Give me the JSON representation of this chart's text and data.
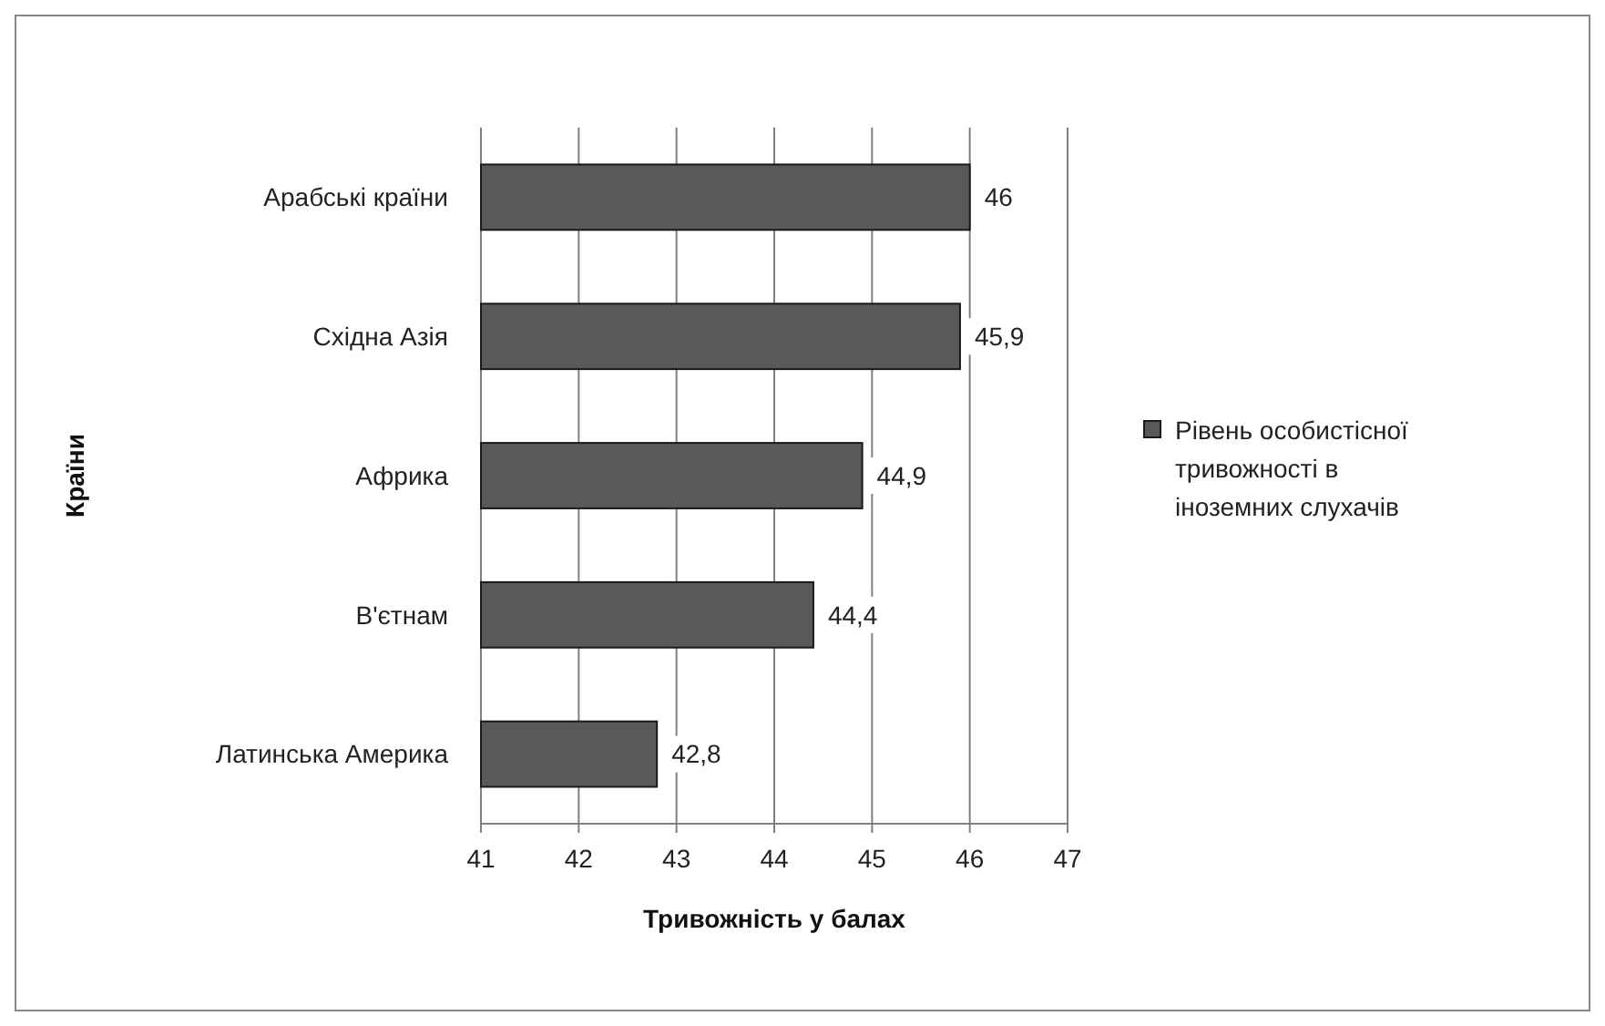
{
  "chart_data": {
    "type": "bar",
    "orientation": "horizontal",
    "xlabel": "Тривожність у балах",
    "ylabel": "Країни",
    "categories": [
      "Арабські країни",
      "Східна Азія",
      "Африка",
      "В'єтнам",
      "Латинська Америка"
    ],
    "series": [
      {
        "name": "Рівень особистісної тривожності в іноземних слухачів",
        "color": "#595959",
        "values": [
          46,
          45.9,
          44.9,
          44.4,
          42.8
        ],
        "value_labels": [
          "46",
          "45,9",
          "44,9",
          "44,4",
          "42,8"
        ]
      }
    ],
    "xlim": [
      41,
      47
    ],
    "xticks": [
      41,
      42,
      43,
      44,
      45,
      46,
      47
    ],
    "grid": "x",
    "legend": "right"
  }
}
